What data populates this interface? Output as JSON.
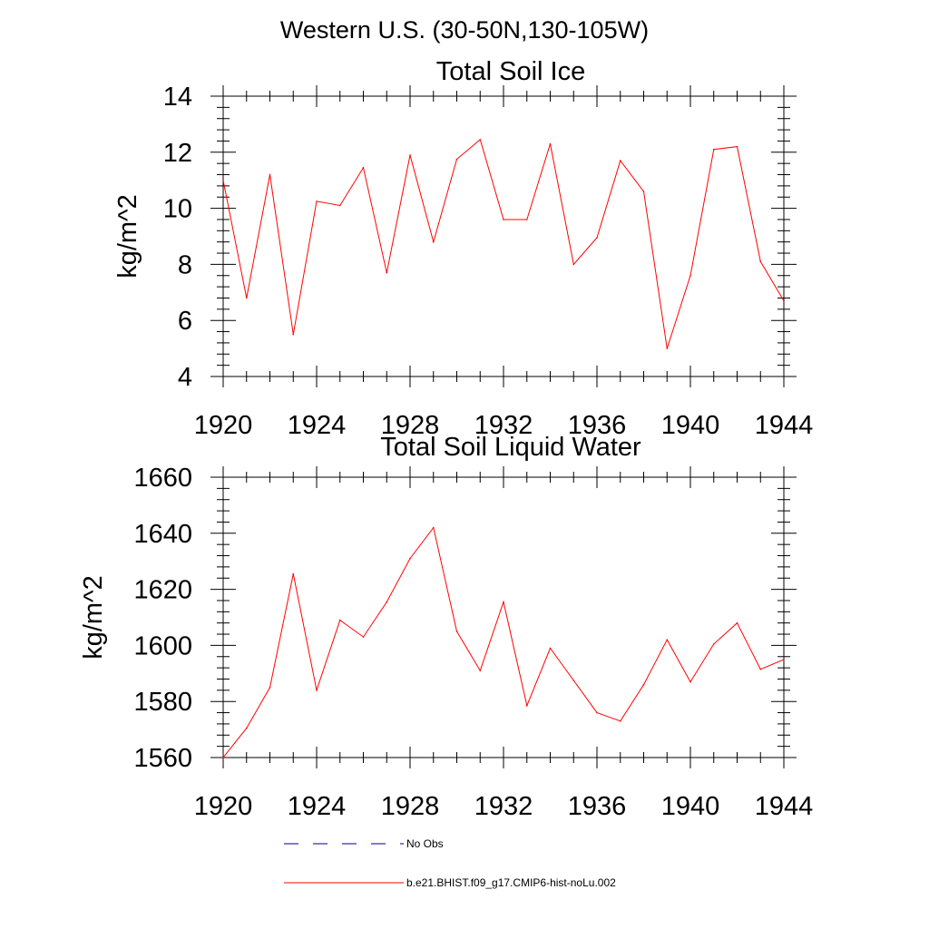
{
  "figure_title": "Western U.S. (30-50N,130-105W)",
  "legend": [
    {
      "label": "No Obs",
      "color": "#000080",
      "style": "dashed"
    },
    {
      "label": "b.e21.BHIST.f09_g17.CMIP6-hist-noLu.002",
      "color": "#ff0000",
      "style": "solid"
    }
  ],
  "chart_data": [
    {
      "type": "line",
      "title": "Total Soil Ice",
      "xlabel": "",
      "ylabel": "kg/m^2",
      "xlim": [
        1920,
        1944
      ],
      "ylim": [
        4,
        14
      ],
      "x_ticks": [
        1920,
        1924,
        1928,
        1932,
        1936,
        1940,
        1944
      ],
      "y_ticks": [
        4,
        6,
        8,
        10,
        12,
        14
      ],
      "grid": false,
      "series": [
        {
          "name": "b.e21.BHIST.f09_g17.CMIP6-hist-noLu.002",
          "color": "#ff0000",
          "x": [
            1920,
            1921,
            1922,
            1923,
            1924,
            1925,
            1926,
            1927,
            1928,
            1929,
            1930,
            1931,
            1932,
            1933,
            1934,
            1935,
            1936,
            1937,
            1938,
            1939,
            1940,
            1941,
            1942,
            1943,
            1944
          ],
          "values": [
            11.0,
            6.8,
            11.2,
            5.5,
            10.25,
            10.1,
            11.45,
            7.7,
            11.9,
            8.8,
            11.75,
            12.45,
            9.6,
            9.6,
            12.3,
            8.0,
            8.95,
            11.7,
            10.6,
            5.0,
            7.6,
            12.1,
            12.2,
            8.1,
            6.7
          ]
        }
      ]
    },
    {
      "type": "line",
      "title": "Total Soil Liquid Water",
      "xlabel": "",
      "ylabel": "kg/m^2",
      "xlim": [
        1920,
        1944
      ],
      "ylim": [
        1560,
        1660
      ],
      "x_ticks": [
        1920,
        1924,
        1928,
        1932,
        1936,
        1940,
        1944
      ],
      "y_ticks": [
        1560,
        1580,
        1600,
        1620,
        1640,
        1660
      ],
      "grid": false,
      "series": [
        {
          "name": "b.e21.BHIST.f09_g17.CMIP6-hist-noLu.002",
          "color": "#ff0000",
          "x": [
            1920,
            1921,
            1922,
            1923,
            1924,
            1925,
            1926,
            1927,
            1928,
            1929,
            1930,
            1931,
            1932,
            1933,
            1934,
            1935,
            1936,
            1937,
            1938,
            1939,
            1940,
            1941,
            1942,
            1943,
            1944
          ],
          "values": [
            1560,
            1570.5,
            1585,
            1625.5,
            1584,
            1609,
            1603,
            1615.5,
            1631,
            1642,
            1605,
            1591,
            1615.5,
            1578.5,
            1599,
            1587.5,
            1576,
            1573,
            1586,
            1602,
            1587,
            1600.5,
            1608,
            1591.5,
            1595
          ]
        }
      ]
    }
  ]
}
